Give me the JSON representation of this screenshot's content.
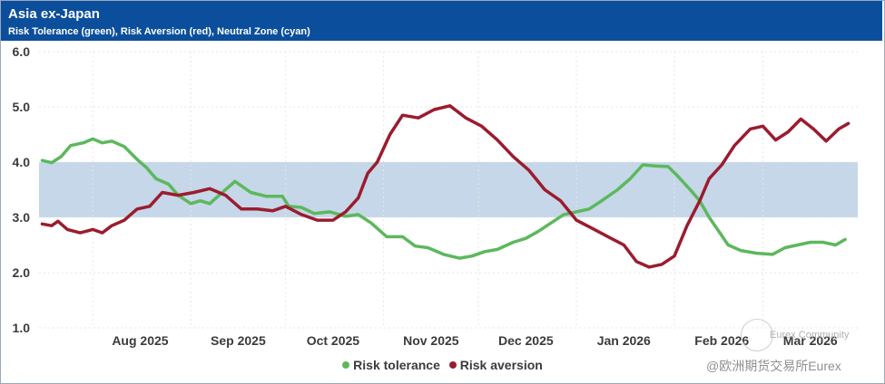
{
  "header": {
    "title": "Asia ex-Japan",
    "subtitle": "Risk Tolerance (green), Risk Aversion (red), Neutral Zone (cyan)"
  },
  "colors": {
    "header_bg": "#0b4f9c",
    "risk_tolerance": "#5cb85c",
    "risk_aversion": "#9b1c2e",
    "neutral_zone": "#c5d7e8"
  },
  "legend": {
    "tolerance_label": "Risk tolerance",
    "aversion_label": "Risk aversion"
  },
  "watermark": {
    "community": "Eurex Community",
    "handle": "@欧洲期货交易所Eurex"
  },
  "chart_data": {
    "type": "line",
    "title": "Asia ex-Japan",
    "subtitle": "Risk Tolerance (green), Risk Aversion (red), Neutral Zone (cyan)",
    "xlabel": "",
    "ylabel": "",
    "ylim": [
      1.0,
      6.0
    ],
    "yticks": [
      "1.0",
      "2.0",
      "3.0",
      "4.0",
      "5.0",
      "6.0"
    ],
    "xlim": [
      "2025-07-15",
      "2026-03-31"
    ],
    "xticks": [
      {
        "date": "2025-08-01",
        "label": "Aug 2025"
      },
      {
        "date": "2025-09-01",
        "label": "Sep 2025"
      },
      {
        "date": "2025-10-01",
        "label": "Oct 2025"
      },
      {
        "date": "2025-11-01",
        "label": "Nov 2025"
      },
      {
        "date": "2025-12-01",
        "label": "Dec 2025"
      },
      {
        "date": "2026-01-01",
        "label": "Jan 2026"
      },
      {
        "date": "2026-02-01",
        "label": "Feb 2026"
      },
      {
        "date": "2026-03-01",
        "label": "Mar 2026"
      }
    ],
    "neutral_zone": [
      3.0,
      4.0
    ],
    "grid": true,
    "legend_position": "bottom",
    "series": [
      {
        "name": "Risk tolerance",
        "color": "#5cb85c",
        "points": [
          [
            "2025-07-16",
            4.03
          ],
          [
            "2025-07-19",
            3.99
          ],
          [
            "2025-07-22",
            4.1
          ],
          [
            "2025-07-25",
            4.3
          ],
          [
            "2025-07-29",
            4.35
          ],
          [
            "2025-08-01",
            4.42
          ],
          [
            "2025-08-04",
            4.35
          ],
          [
            "2025-08-07",
            4.38
          ],
          [
            "2025-08-11",
            4.28
          ],
          [
            "2025-08-15",
            4.05
          ],
          [
            "2025-08-18",
            3.9
          ],
          [
            "2025-08-21",
            3.7
          ],
          [
            "2025-08-25",
            3.6
          ],
          [
            "2025-08-28",
            3.4
          ],
          [
            "2025-09-01",
            3.25
          ],
          [
            "2025-09-04",
            3.3
          ],
          [
            "2025-09-07",
            3.25
          ],
          [
            "2025-09-10",
            3.4
          ],
          [
            "2025-09-15",
            3.65
          ],
          [
            "2025-09-20",
            3.45
          ],
          [
            "2025-09-25",
            3.38
          ],
          [
            "2025-09-30",
            3.38
          ],
          [
            "2025-10-02",
            3.2
          ],
          [
            "2025-10-06",
            3.18
          ],
          [
            "2025-10-10",
            3.07
          ],
          [
            "2025-10-15",
            3.1
          ],
          [
            "2025-10-20",
            3.02
          ],
          [
            "2025-10-24",
            3.05
          ],
          [
            "2025-10-28",
            2.9
          ],
          [
            "2025-11-02",
            2.65
          ],
          [
            "2025-11-07",
            2.65
          ],
          [
            "2025-11-11",
            2.48
          ],
          [
            "2025-11-15",
            2.45
          ],
          [
            "2025-11-20",
            2.33
          ],
          [
            "2025-11-25",
            2.26
          ],
          [
            "2025-11-29",
            2.3
          ],
          [
            "2025-12-03",
            2.38
          ],
          [
            "2025-12-07",
            2.42
          ],
          [
            "2025-12-12",
            2.55
          ],
          [
            "2025-12-16",
            2.62
          ],
          [
            "2025-12-20",
            2.75
          ],
          [
            "2025-12-24",
            2.9
          ],
          [
            "2025-12-28",
            3.05
          ],
          [
            "2026-01-01",
            3.1
          ],
          [
            "2026-01-05",
            3.15
          ],
          [
            "2026-01-09",
            3.3
          ],
          [
            "2026-01-14",
            3.5
          ],
          [
            "2026-01-18",
            3.7
          ],
          [
            "2026-01-22",
            3.95
          ],
          [
            "2026-01-26",
            3.93
          ],
          [
            "2026-01-30",
            3.92
          ],
          [
            "2026-02-02",
            3.75
          ],
          [
            "2026-02-06",
            3.5
          ],
          [
            "2026-02-09",
            3.3
          ],
          [
            "2026-02-12",
            3.0
          ],
          [
            "2026-02-15",
            2.75
          ],
          [
            "2026-02-18",
            2.5
          ],
          [
            "2026-02-22",
            2.4
          ],
          [
            "2026-02-27",
            2.35
          ],
          [
            "2026-03-04",
            2.33
          ],
          [
            "2026-03-08",
            2.45
          ],
          [
            "2026-03-12",
            2.5
          ],
          [
            "2026-03-16",
            2.55
          ],
          [
            "2026-03-20",
            2.55
          ],
          [
            "2026-03-24",
            2.5
          ],
          [
            "2026-03-27",
            2.6
          ]
        ]
      },
      {
        "name": "Risk aversion",
        "color": "#9b1c2e",
        "points": [
          [
            "2025-07-16",
            2.88
          ],
          [
            "2025-07-19",
            2.85
          ],
          [
            "2025-07-21",
            2.93
          ],
          [
            "2025-07-24",
            2.78
          ],
          [
            "2025-07-28",
            2.72
          ],
          [
            "2025-08-01",
            2.78
          ],
          [
            "2025-08-04",
            2.72
          ],
          [
            "2025-08-07",
            2.85
          ],
          [
            "2025-08-11",
            2.95
          ],
          [
            "2025-08-15",
            3.15
          ],
          [
            "2025-08-19",
            3.2
          ],
          [
            "2025-08-23",
            3.45
          ],
          [
            "2025-08-28",
            3.4
          ],
          [
            "2025-09-02",
            3.45
          ],
          [
            "2025-09-07",
            3.52
          ],
          [
            "2025-09-12",
            3.4
          ],
          [
            "2025-09-17",
            3.15
          ],
          [
            "2025-09-22",
            3.15
          ],
          [
            "2025-09-27",
            3.12
          ],
          [
            "2025-10-01",
            3.2
          ],
          [
            "2025-10-06",
            3.05
          ],
          [
            "2025-10-11",
            2.95
          ],
          [
            "2025-10-16",
            2.95
          ],
          [
            "2025-10-20",
            3.1
          ],
          [
            "2025-10-24",
            3.35
          ],
          [
            "2025-10-27",
            3.8
          ],
          [
            "2025-10-30",
            4.0
          ],
          [
            "2025-11-03",
            4.5
          ],
          [
            "2025-11-07",
            4.85
          ],
          [
            "2025-11-12",
            4.8
          ],
          [
            "2025-11-17",
            4.95
          ],
          [
            "2025-11-22",
            5.02
          ],
          [
            "2025-11-27",
            4.8
          ],
          [
            "2025-12-02",
            4.65
          ],
          [
            "2025-12-07",
            4.4
          ],
          [
            "2025-12-12",
            4.1
          ],
          [
            "2025-12-17",
            3.85
          ],
          [
            "2025-12-22",
            3.5
          ],
          [
            "2025-12-27",
            3.3
          ],
          [
            "2026-01-01",
            2.95
          ],
          [
            "2026-01-06",
            2.8
          ],
          [
            "2026-01-11",
            2.65
          ],
          [
            "2026-01-16",
            2.5
          ],
          [
            "2026-01-20",
            2.2
          ],
          [
            "2026-01-24",
            2.1
          ],
          [
            "2026-01-28",
            2.15
          ],
          [
            "2026-02-01",
            2.3
          ],
          [
            "2026-02-05",
            2.85
          ],
          [
            "2026-02-09",
            3.3
          ],
          [
            "2026-02-12",
            3.7
          ],
          [
            "2026-02-16",
            3.95
          ],
          [
            "2026-02-20",
            4.3
          ],
          [
            "2026-02-25",
            4.6
          ],
          [
            "2026-03-01",
            4.65
          ],
          [
            "2026-03-05",
            4.4
          ],
          [
            "2026-03-09",
            4.55
          ],
          [
            "2026-03-13",
            4.78
          ],
          [
            "2026-03-17",
            4.6
          ],
          [
            "2026-03-21",
            4.38
          ],
          [
            "2026-03-25",
            4.6
          ],
          [
            "2026-03-28",
            4.7
          ]
        ]
      }
    ]
  }
}
